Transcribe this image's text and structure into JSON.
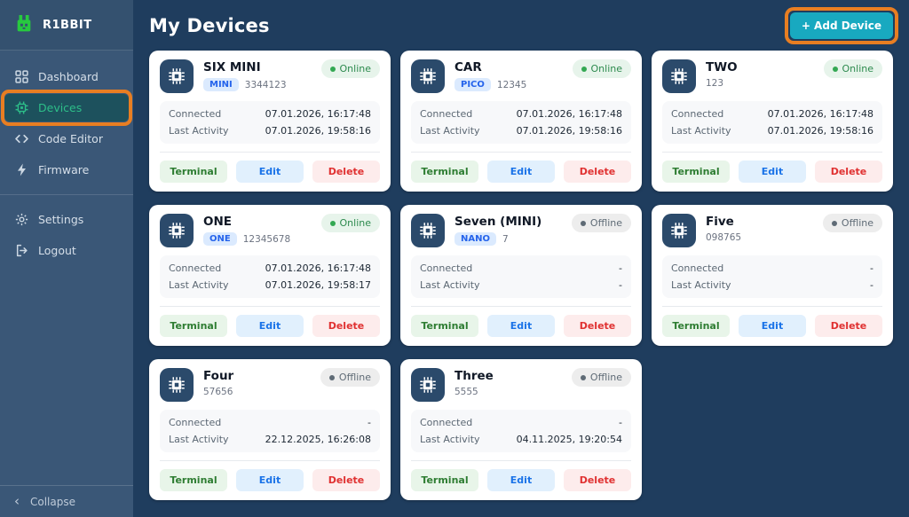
{
  "app": {
    "brand": "R1BBIT"
  },
  "sidebar": {
    "items": [
      {
        "label": "Dashboard",
        "icon": "dashboard-icon",
        "active": false,
        "annotated": false,
        "divider_after": false
      },
      {
        "label": "Devices",
        "icon": "chip-icon",
        "active": true,
        "annotated": true,
        "divider_after": false
      },
      {
        "label": "Code Editor",
        "icon": "code-icon",
        "active": false,
        "annotated": false,
        "divider_after": false
      },
      {
        "label": "Firmware",
        "icon": "bolt-icon",
        "active": false,
        "annotated": false,
        "divider_after": true
      },
      {
        "label": "Settings",
        "icon": "gear-icon",
        "active": false,
        "annotated": false,
        "divider_after": false
      },
      {
        "label": "Logout",
        "icon": "logout-icon",
        "active": false,
        "annotated": false,
        "divider_after": false
      }
    ],
    "collapse_chevron": "‹",
    "collapse_label": "Collapse"
  },
  "header": {
    "title": "My Devices",
    "add_button_label": "+ Add Device"
  },
  "labels": {
    "connected": "Connected",
    "last_activity": "Last Activity",
    "terminal": "Terminal",
    "edit": "Edit",
    "delete": "Delete"
  },
  "devices": [
    {
      "name": "SIX MINI",
      "badge": "MINI",
      "device_id": "3344123",
      "status": "Online",
      "online": true,
      "connected": "07.01.2026, 16:17:48",
      "last_activity": "07.01.2026, 19:58:16"
    },
    {
      "name": "CAR",
      "badge": "PICO",
      "device_id": "12345",
      "status": "Online",
      "online": true,
      "connected": "07.01.2026, 16:17:48",
      "last_activity": "07.01.2026, 19:58:16"
    },
    {
      "name": "TWO",
      "badge": "",
      "device_id": "123",
      "status": "Online",
      "online": true,
      "connected": "07.01.2026, 16:17:48",
      "last_activity": "07.01.2026, 19:58:16"
    },
    {
      "name": "ONE",
      "badge": "ONE",
      "device_id": "12345678",
      "status": "Online",
      "online": true,
      "connected": "07.01.2026, 16:17:48",
      "last_activity": "07.01.2026, 19:58:17"
    },
    {
      "name": "Seven (MINI)",
      "badge": "NANO",
      "device_id": "7",
      "status": "Offline",
      "online": false,
      "connected": "-",
      "last_activity": "-"
    },
    {
      "name": "Five",
      "badge": "",
      "device_id": "098765",
      "status": "Offline",
      "online": false,
      "connected": "-",
      "last_activity": "-"
    },
    {
      "name": "Four",
      "badge": "",
      "device_id": "57656",
      "status": "Offline",
      "online": false,
      "connected": "-",
      "last_activity": "22.12.2025, 16:26:08"
    },
    {
      "name": "Three",
      "badge": "",
      "device_id": "5555",
      "status": "Offline",
      "online": false,
      "connected": "-",
      "last_activity": "04.11.2025, 19:20:54"
    }
  ],
  "colors": {
    "sidebar_bg": "#3a5777",
    "sidebar_top_bg": "#34516f",
    "main_bg": "#1f3d5e",
    "annotation_orange": "#e87e22",
    "brand_green": "#27c93f",
    "active_item_bg": "#1d515d",
    "active_item_text": "#2dbe88",
    "add_button_bg": "#18a9c0",
    "card_bg": "#ffffff",
    "avatar_bg": "#2b4a6b",
    "badge_bg": "#dbeafe",
    "badge_text": "#2563eb",
    "online_bg": "#e7f4eb",
    "online_text": "#2d8a4e",
    "offline_bg": "#ededed",
    "offline_text": "#5f6b76",
    "terminal_bg": "#e8f5e9",
    "terminal_text": "#2e7d32",
    "edit_bg": "#e1f0fd",
    "edit_text": "#1a73e8",
    "delete_bg": "#fdecec",
    "delete_text": "#e03131"
  }
}
